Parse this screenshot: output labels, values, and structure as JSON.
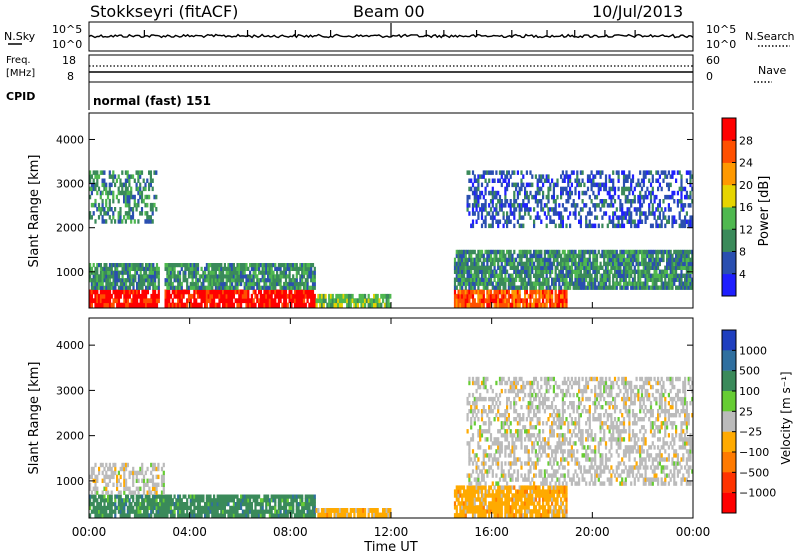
{
  "header": {
    "title": "Stokkseyri (fitACF)",
    "beam": "Beam 00",
    "date": "10/Jul/2013"
  },
  "nsky": {
    "label": "N.Sky",
    "ticks_left": [
      "10^5",
      "10^0"
    ],
    "ticks_right": [
      "10^5",
      "10^0"
    ],
    "right_label": "N.Search"
  },
  "freq": {
    "label_line1": "Freq.",
    "label_line2": "[MHz]",
    "ticks_left": [
      "18",
      "8"
    ],
    "ticks_right": [
      "60",
      "0"
    ],
    "right_label": "Nave"
  },
  "cpid": {
    "label": "CPID",
    "program": "normal (fast) 151"
  },
  "power_panel": {
    "ylabel": "Slant Range [km]",
    "yticks": [
      "1000",
      "2000",
      "3000",
      "4000"
    ],
    "colorbar_label": "Power [dB]",
    "colorbar_ticks": [
      "4",
      "8",
      "12",
      "16",
      "20",
      "24",
      "28"
    ],
    "colors": [
      "#1f1fff",
      "#2a4fb0",
      "#3a8a5a",
      "#4fb84f",
      "#e6d400",
      "#ff9900",
      "#ff5000",
      "#ff0000"
    ]
  },
  "velocity_panel": {
    "ylabel": "Slant Range [km]",
    "yticks": [
      "1000",
      "2000",
      "3000",
      "4000"
    ],
    "colorbar_label": "Velocity [m s⁻¹]",
    "colorbar_ticks": [
      "1000",
      "500",
      "100",
      "25",
      "−25",
      "−100",
      "−500",
      "−1000"
    ],
    "colors": [
      "#1f3fbf",
      "#2f6f9f",
      "#3a8a5a",
      "#66cc33",
      "#bbbbbb",
      "#ffaa00",
      "#ff7a00",
      "#ff3300",
      "#ff0000"
    ]
  },
  "x_axis": {
    "ticks": [
      "00:00",
      "04:00",
      "08:00",
      "12:00",
      "16:00",
      "20:00",
      "00:00"
    ],
    "label": "Time UT"
  },
  "chart_data": [
    {
      "type": "line",
      "name": "N.Sky",
      "x_range": [
        "00:00",
        "24:00"
      ],
      "y_scale": "log",
      "ylim": [
        "10^0",
        "10^5"
      ]
    },
    {
      "type": "line",
      "name": "Freq",
      "x_range": [
        "00:00",
        "24:00"
      ],
      "ylim": [
        8,
        18
      ],
      "ylim_right": [
        0,
        60
      ],
      "value_approx": 10
    },
    {
      "type": "heatmap",
      "name": "Power",
      "x_range": [
        "00:00",
        "24:00"
      ],
      "ylim": [
        180,
        4600
      ],
      "colorbar_range": [
        0,
        32
      ],
      "regions": [
        {
          "t": [
            0.0,
            2.8
          ],
          "r": [
            200,
            600
          ],
          "level": 28
        },
        {
          "t": [
            0.0,
            2.8
          ],
          "r": [
            600,
            1200
          ],
          "level": 10
        },
        {
          "t": [
            0.0,
            2.7
          ],
          "r": [
            2100,
            3300
          ],
          "level": 8
        },
        {
          "t": [
            3.0,
            9.0
          ],
          "r": [
            200,
            600
          ],
          "level": 28
        },
        {
          "t": [
            3.0,
            9.0
          ],
          "r": [
            600,
            1200
          ],
          "level": 8
        },
        {
          "t": [
            9.0,
            12.0
          ],
          "r": [
            200,
            500
          ],
          "level": 12
        },
        {
          "t": [
            14.5,
            19.0
          ],
          "r": [
            200,
            600
          ],
          "level": 24
        },
        {
          "t": [
            14.5,
            24.0
          ],
          "r": [
            600,
            1500
          ],
          "level": 8
        },
        {
          "t": [
            15.0,
            24.0
          ],
          "r": [
            2000,
            3300
          ],
          "level": 6
        }
      ]
    },
    {
      "type": "heatmap",
      "name": "Velocity",
      "x_range": [
        "00:00",
        "24:00"
      ],
      "ylim": [
        180,
        4600
      ],
      "colorbar_range": [
        -1000,
        1000
      ],
      "regions": [
        {
          "t": [
            0.0,
            9.0
          ],
          "r": [
            200,
            700
          ],
          "v": 100
        },
        {
          "t": [
            0.0,
            3.0
          ],
          "r": [
            700,
            1400
          ],
          "v": 0
        },
        {
          "t": [
            9.0,
            12.0
          ],
          "r": [
            200,
            400
          ],
          "v": -100
        },
        {
          "t": [
            14.5,
            19.0
          ],
          "r": [
            200,
            900
          ],
          "v": -100
        },
        {
          "t": [
            15.0,
            24.0
          ],
          "r": [
            900,
            3300
          ],
          "v": 0
        }
      ]
    }
  ]
}
